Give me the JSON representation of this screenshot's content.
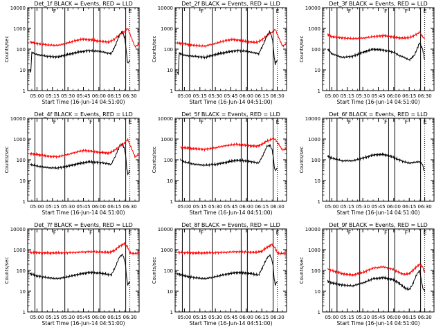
{
  "figure": {
    "colors": {
      "events": "#000000",
      "lld": "#ff0000",
      "background": "#ffffff"
    }
  },
  "chart_data": [
    {
      "type": "line",
      "title": "Det_1f BLACK = Events, RED = LLD",
      "xlabel": "Start Time (16-Jun-14 04:51:00)",
      "ylabel": "Counts/sec",
      "x_ticks": [
        "05:00",
        "05:15",
        "05:30",
        "05:45",
        "06:00",
        "06:15",
        "06:30"
      ],
      "y_ticks": [
        "1",
        "10",
        "100",
        "1000",
        "10000"
      ],
      "ylim": [
        1,
        10000
      ],
      "y_scale": "log",
      "x_range_minutes": [
        -9,
        99
      ],
      "markers": [
        {
          "minute": 15,
          "label": "F"
        },
        {
          "minute": 88,
          "label": "E"
        }
      ],
      "vlines": [
        -2,
        5,
        27,
        55,
        61,
        86
      ],
      "dotted_vlines": [
        90
      ],
      "series": [
        {
          "name": "BLACK",
          "x": [
            -7,
            -6,
            -5,
            0,
            10,
            20,
            30,
            40,
            50,
            60,
            65,
            72,
            76,
            80,
            83,
            85,
            86,
            87,
            88,
            90
          ],
          "y": [
            10,
            8,
            70,
            55,
            45,
            42,
            55,
            72,
            85,
            80,
            70,
            60,
            150,
            500,
            700,
            350,
            150,
            50,
            20,
            30
          ]
        },
        {
          "name": "RED",
          "x": [
            -7,
            0,
            10,
            20,
            30,
            40,
            45,
            50,
            55,
            60,
            65,
            70,
            75,
            80,
            85,
            88,
            95,
            99
          ],
          "y": [
            220,
            190,
            160,
            150,
            200,
            280,
            300,
            290,
            270,
            240,
            230,
            220,
            300,
            500,
            700,
            1000,
            130,
            180
          ]
        }
      ]
    },
    {
      "type": "line",
      "title": "Det_2f BLACK = Events, RED = LLD",
      "xlabel": "Start Time (16-Jun-14 04:51:00)",
      "ylabel": "Counts/sec",
      "x_ticks": [
        "05:00",
        "05:15",
        "05:30",
        "05:45",
        "06:00",
        "06:15",
        "06:30"
      ],
      "y_ticks": [
        "1",
        "10",
        "100",
        "1000",
        "10000"
      ],
      "ylim": [
        1,
        10000
      ],
      "y_scale": "log",
      "x_range_minutes": [
        -9,
        99
      ],
      "markers": [
        {
          "minute": 15,
          "label": "F"
        },
        {
          "minute": 88,
          "label": "E"
        }
      ],
      "vlines": [
        -2,
        5,
        27,
        55,
        61,
        86
      ],
      "dotted_vlines": [
        90
      ],
      "series": [
        {
          "name": "BLACK",
          "x": [
            -7,
            -6,
            -5,
            0,
            10,
            20,
            30,
            40,
            50,
            60,
            65,
            72,
            76,
            80,
            83,
            85,
            86,
            87,
            88,
            90
          ],
          "y": [
            8,
            6,
            65,
            50,
            45,
            40,
            55,
            70,
            85,
            80,
            70,
            60,
            150,
            450,
            700,
            350,
            150,
            40,
            20,
            30
          ]
        },
        {
          "name": "RED",
          "x": [
            -7,
            0,
            10,
            20,
            30,
            40,
            45,
            50,
            55,
            60,
            65,
            70,
            75,
            80,
            85,
            88,
            95,
            99
          ],
          "y": [
            200,
            180,
            150,
            140,
            190,
            260,
            290,
            280,
            260,
            230,
            220,
            210,
            280,
            450,
            650,
            900,
            140,
            180
          ]
        }
      ]
    },
    {
      "type": "line",
      "title": "Det_3f BLACK = Events, RED = LLD",
      "xlabel": "Start Time (16-Jun-14 04:51:00)",
      "ylabel": "Counts/sec",
      "x_ticks": [
        "05:00",
        "05:15",
        "05:30",
        "05:45",
        "06:00",
        "06:15",
        "06:30"
      ],
      "y_ticks": [
        "1",
        "10",
        "100",
        "1000",
        "10000"
      ],
      "ylim": [
        1,
        10000
      ],
      "y_scale": "log",
      "x_range_minutes": [
        -9,
        99
      ],
      "markers": [
        {
          "minute": 15,
          "label": "F"
        },
        {
          "minute": 50,
          "label": "F"
        },
        {
          "minute": 70,
          "label": "F"
        },
        {
          "minute": 88,
          "label": "E"
        }
      ],
      "vlines": [
        -2,
        5,
        27,
        55,
        61,
        86
      ],
      "dotted_vlines": [
        90
      ],
      "series": [
        {
          "name": "BLACK",
          "x": [
            -4,
            0,
            10,
            20,
            30,
            40,
            50,
            60,
            65,
            70,
            75,
            80,
            85,
            88,
            90
          ],
          "y": [
            100,
            60,
            40,
            45,
            70,
            100,
            90,
            70,
            50,
            40,
            30,
            50,
            200,
            100,
            30
          ]
        },
        {
          "name": "RED",
          "x": [
            -4,
            0,
            10,
            20,
            30,
            40,
            50,
            60,
            65,
            70,
            75,
            80,
            85,
            88,
            90
          ],
          "y": [
            500,
            400,
            350,
            320,
            340,
            400,
            450,
            380,
            350,
            340,
            360,
            450,
            650,
            400,
            300
          ]
        }
      ]
    },
    {
      "type": "line",
      "title": "Det_4f BLACK = Events, RED = LLD",
      "xlabel": "Start Time (16-Jun-14 04:51:00)",
      "ylabel": "Counts/sec",
      "x_ticks": [
        "05:00",
        "05:15",
        "05:30",
        "05:45",
        "06:00",
        "06:15",
        "06:30"
      ],
      "y_ticks": [
        "1",
        "10",
        "100",
        "1000",
        "10000"
      ],
      "ylim": [
        1,
        10000
      ],
      "y_scale": "log",
      "x_range_minutes": [
        -9,
        99
      ],
      "markers": [
        {
          "minute": 15,
          "label": "F"
        },
        {
          "minute": 50,
          "label": "F"
        },
        {
          "minute": 88,
          "label": "E"
        }
      ],
      "vlines": [
        -2,
        5,
        27,
        55,
        61,
        86
      ],
      "dotted_vlines": [
        90
      ],
      "series": [
        {
          "name": "BLACK",
          "x": [
            -7,
            0,
            10,
            20,
            30,
            40,
            50,
            60,
            65,
            72,
            76,
            80,
            83,
            85,
            86,
            87,
            88,
            90
          ],
          "y": [
            60,
            50,
            42,
            40,
            50,
            65,
            80,
            75,
            70,
            60,
            150,
            450,
            600,
            300,
            150,
            40,
            20,
            30
          ]
        },
        {
          "name": "RED",
          "x": [
            -7,
            0,
            10,
            20,
            30,
            40,
            45,
            50,
            55,
            60,
            65,
            70,
            75,
            80,
            85,
            88,
            95,
            99
          ],
          "y": [
            200,
            180,
            150,
            140,
            180,
            250,
            280,
            270,
            250,
            230,
            220,
            210,
            280,
            450,
            650,
            950,
            140,
            180
          ]
        }
      ]
    },
    {
      "type": "line",
      "title": "Det_5f BLACK = Events, RED = LLD",
      "xlabel": "Start Time (16-Jun-14 04:51:00)",
      "ylabel": "Counts/sec",
      "x_ticks": [
        "05:00",
        "05:15",
        "05:30",
        "05:45",
        "06:00",
        "06:15",
        "06:30"
      ],
      "y_ticks": [
        "1",
        "10",
        "100",
        "1000",
        "10000"
      ],
      "ylim": [
        1,
        10000
      ],
      "y_scale": "log",
      "x_range_minutes": [
        -9,
        99
      ],
      "markers": [
        {
          "minute": 15,
          "label": "F"
        },
        {
          "minute": 88,
          "label": "E"
        }
      ],
      "vlines": [
        -2,
        5,
        27,
        55,
        61,
        86
      ],
      "dotted_vlines": [
        90
      ],
      "series": [
        {
          "name": "BLACK",
          "x": [
            -4,
            0,
            10,
            20,
            30,
            40,
            50,
            60,
            65,
            72,
            76,
            80,
            83,
            85,
            86,
            87,
            88,
            90
          ],
          "y": [
            100,
            80,
            60,
            55,
            60,
            75,
            95,
            90,
            80,
            70,
            160,
            450,
            500,
            300,
            150,
            50,
            30,
            40
          ]
        },
        {
          "name": "RED",
          "x": [
            -4,
            0,
            10,
            20,
            30,
            40,
            50,
            60,
            65,
            70,
            75,
            80,
            85,
            88,
            95,
            99
          ],
          "y": [
            400,
            380,
            340,
            320,
            380,
            480,
            560,
            500,
            470,
            450,
            550,
            800,
            1000,
            1000,
            300,
            350
          ]
        }
      ]
    },
    {
      "type": "line",
      "title": "Det_6f BLACK = Events, RED = LLD",
      "xlabel": "Start Time (16-Jun-14 04:51:00)",
      "ylabel": "Counts/sec",
      "x_ticks": [
        "05:00",
        "05:15",
        "05:30",
        "05:45",
        "06:00",
        "06:15",
        "06:30"
      ],
      "y_ticks": [
        "1",
        "10",
        "100",
        "1000",
        "10000"
      ],
      "ylim": [
        1,
        10000
      ],
      "y_scale": "log",
      "x_range_minutes": [
        -9,
        99
      ],
      "markers": [
        {
          "minute": 15,
          "label": "F"
        },
        {
          "minute": 50,
          "label": "F"
        },
        {
          "minute": 70,
          "label": "F"
        },
        {
          "minute": 88,
          "label": "E"
        }
      ],
      "vlines": [
        -2,
        5,
        27,
        55,
        61,
        86
      ],
      "dotted_vlines": [
        90
      ],
      "series": [
        {
          "name": "BLACK",
          "x": [
            -4,
            0,
            10,
            20,
            30,
            40,
            45,
            50,
            55,
            60,
            65,
            70,
            75,
            80,
            85,
            88,
            89
          ],
          "y": [
            150,
            120,
            90,
            90,
            120,
            170,
            180,
            180,
            160,
            130,
            100,
            80,
            70,
            75,
            80,
            60,
            30
          ]
        }
      ]
    },
    {
      "type": "line",
      "title": "Det_7f BLACK = Events, RED = LLD",
      "xlabel": "Start Time (16-Jun-14 04:51:00)",
      "ylabel": "Counts/sec",
      "x_ticks": [
        "05:00",
        "05:15",
        "05:30",
        "05:45",
        "06:00",
        "06:15",
        "06:30"
      ],
      "y_ticks": [
        "1",
        "10",
        "100",
        "1000",
        "10000"
      ],
      "ylim": [
        1,
        10000
      ],
      "y_scale": "log",
      "x_range_minutes": [
        -9,
        99
      ],
      "markers": [
        {
          "minute": 15,
          "label": "F"
        },
        {
          "minute": 50,
          "label": "F"
        },
        {
          "minute": 88,
          "label": "E"
        }
      ],
      "vlines": [
        -2,
        5,
        27,
        55,
        61,
        86
      ],
      "dotted_vlines": [
        90
      ],
      "series": [
        {
          "name": "BLACK",
          "x": [
            -7,
            0,
            10,
            20,
            30,
            40,
            50,
            60,
            65,
            72,
            76,
            80,
            83,
            85,
            86,
            87,
            88,
            90
          ],
          "y": [
            70,
            55,
            45,
            40,
            50,
            65,
            80,
            75,
            70,
            60,
            150,
            450,
            600,
            300,
            150,
            40,
            20,
            30
          ]
        },
        {
          "name": "RED",
          "x": [
            -7,
            0,
            10,
            20,
            30,
            40,
            50,
            60,
            65,
            70,
            75,
            80,
            85,
            88,
            90,
            95,
            99
          ],
          "y": [
            750,
            720,
            700,
            700,
            720,
            750,
            800,
            780,
            760,
            750,
            900,
            1500,
            2000,
            1300,
            700,
            650,
            700
          ]
        }
      ]
    },
    {
      "type": "line",
      "title": "Det_8f BLACK = Events, RED = LLD",
      "xlabel": "Start Time (16-Jun-14 04:51:00)",
      "ylabel": "Counts/sec",
      "x_ticks": [
        "05:00",
        "05:15",
        "05:30",
        "05:45",
        "06:00",
        "06:15",
        "06:30"
      ],
      "y_ticks": [
        "1",
        "10",
        "100",
        "1000",
        "10000"
      ],
      "ylim": [
        1,
        10000
      ],
      "y_scale": "log",
      "x_range_minutes": [
        -9,
        99
      ],
      "markers": [
        {
          "minute": 15,
          "label": "F"
        },
        {
          "minute": 88,
          "label": "E"
        }
      ],
      "vlines": [
        -2,
        5,
        27,
        55,
        61,
        86
      ],
      "dotted_vlines": [
        90
      ],
      "series": [
        {
          "name": "BLACK",
          "x": [
            -7,
            0,
            10,
            20,
            30,
            40,
            50,
            60,
            65,
            72,
            76,
            80,
            83,
            85,
            86,
            87,
            88,
            90
          ],
          "y": [
            70,
            55,
            45,
            40,
            50,
            65,
            80,
            75,
            70,
            60,
            150,
            400,
            550,
            300,
            150,
            40,
            20,
            30
          ]
        },
        {
          "name": "RED",
          "x": [
            -7,
            0,
            10,
            20,
            30,
            40,
            50,
            60,
            65,
            70,
            75,
            80,
            85,
            88,
            90,
            95,
            99
          ],
          "y": [
            750,
            720,
            700,
            700,
            720,
            750,
            800,
            780,
            760,
            750,
            850,
            1300,
            1800,
            1200,
            700,
            650,
            700
          ]
        }
      ]
    },
    {
      "type": "line",
      "title": "Det_9f BLACK = Events, RED = LLD",
      "xlabel": "Start Time (16-Jun-14 04:51:00)",
      "ylabel": "Counts/sec",
      "x_ticks": [
        "05:00",
        "05:15",
        "05:30",
        "05:45",
        "06:00",
        "06:15",
        "06:30"
      ],
      "y_ticks": [
        "1",
        "10",
        "100",
        "1000",
        "10000"
      ],
      "ylim": [
        1,
        10000
      ],
      "y_scale": "log",
      "x_range_minutes": [
        -9,
        99
      ],
      "markers": [
        {
          "minute": 15,
          "label": "F"
        },
        {
          "minute": 50,
          "label": "F"
        },
        {
          "minute": 70,
          "label": "F"
        },
        {
          "minute": 88,
          "label": "E"
        }
      ],
      "vlines": [
        -2,
        5,
        27,
        55,
        61,
        86
      ],
      "dotted_vlines": [
        90
      ],
      "series": [
        {
          "name": "BLACK",
          "x": [
            -4,
            0,
            10,
            20,
            30,
            40,
            50,
            60,
            65,
            70,
            75,
            78,
            82,
            85,
            88,
            90
          ],
          "y": [
            30,
            25,
            20,
            18,
            25,
            40,
            45,
            35,
            25,
            15,
            12,
            20,
            60,
            100,
            15,
            10
          ]
        },
        {
          "name": "RED",
          "x": [
            -4,
            0,
            10,
            20,
            30,
            40,
            50,
            60,
            65,
            70,
            75,
            80,
            85,
            88,
            90
          ],
          "y": [
            120,
            100,
            70,
            60,
            80,
            130,
            150,
            110,
            80,
            65,
            70,
            120,
            200,
            150,
            80
          ]
        }
      ]
    }
  ]
}
